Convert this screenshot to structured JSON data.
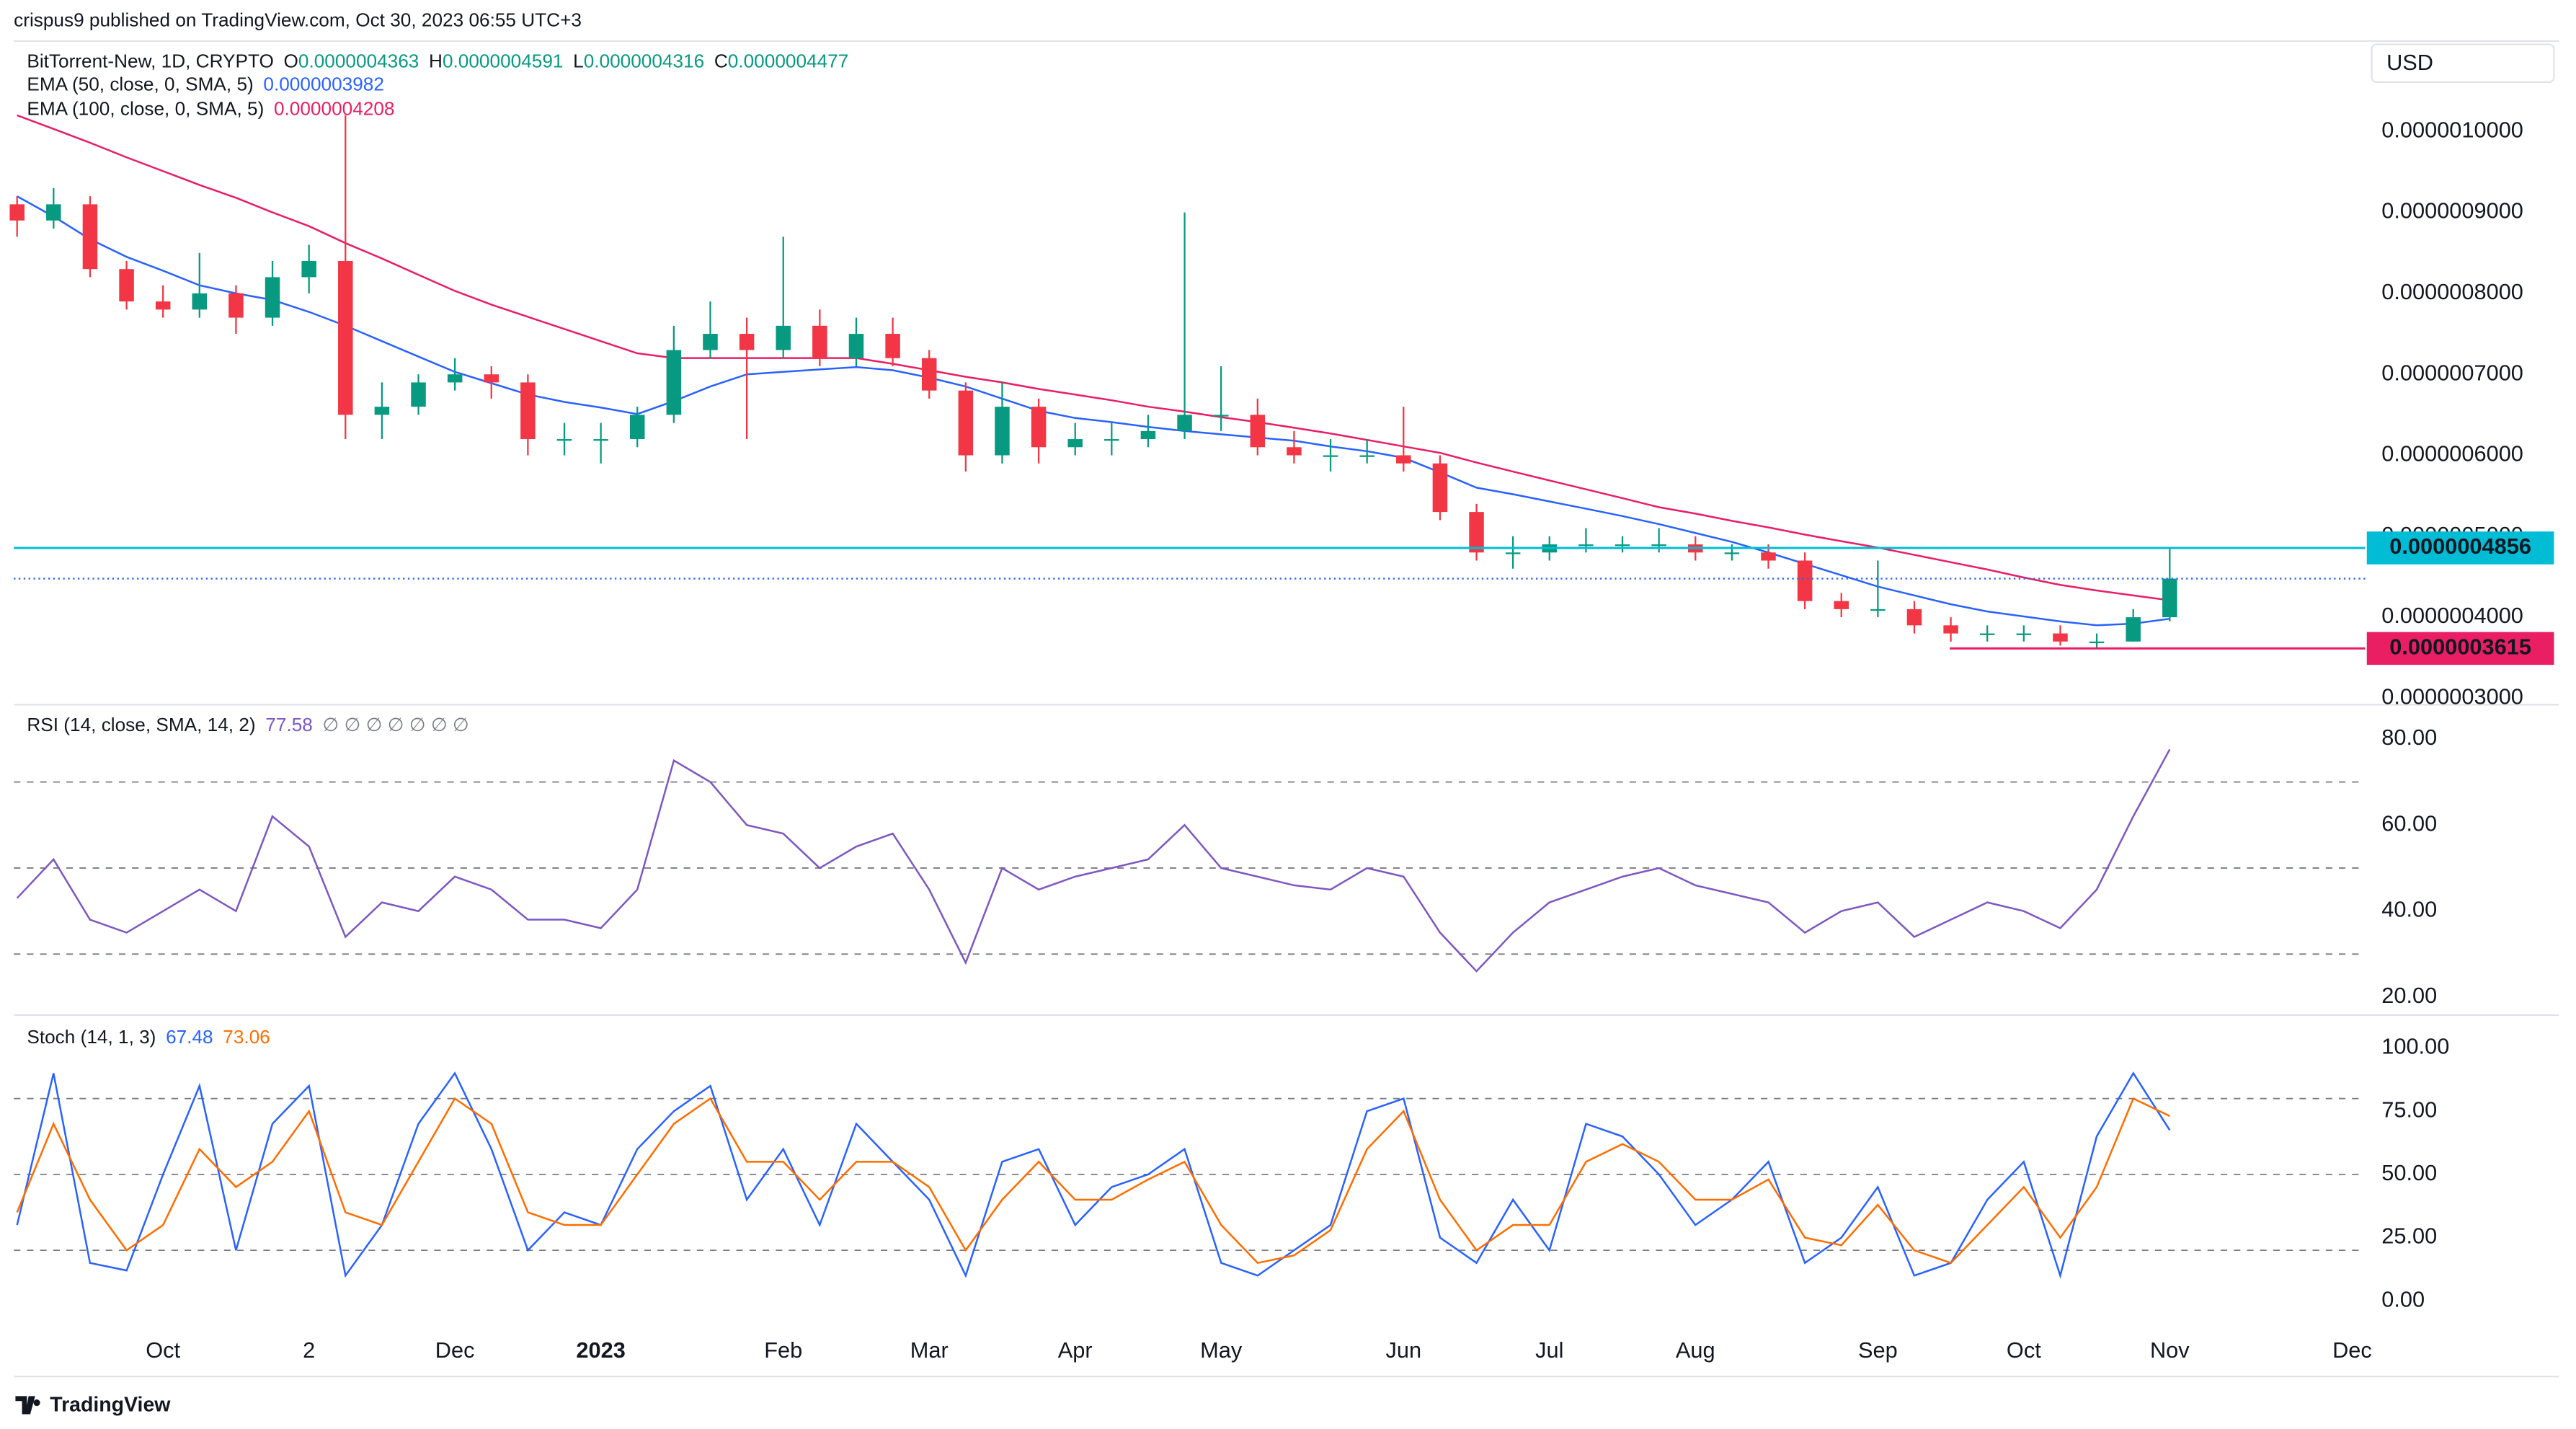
{
  "header": {
    "publisher": "crispus9 published on TradingView.com, Oct 30, 2023 06:55 UTC+3",
    "currency": "USD",
    "brand": "TradingView"
  },
  "chart_data": [
    {
      "type": "candlestick",
      "title": "BitTorrent-New, 1D, CRYPTO",
      "ohlc_labels": [
        {
          "label": "O",
          "value": "0.0000004363"
        },
        {
          "label": "H",
          "value": "0.0000004591"
        },
        {
          "label": "L",
          "value": "0.0000004316"
        },
        {
          "label": "C",
          "value": "0.0000004477"
        }
      ],
      "categories": [
        null,
        null,
        null,
        null,
        "Oct",
        null,
        null,
        null,
        "2",
        null,
        null,
        null,
        "Dec",
        null,
        null,
        null,
        "2023",
        null,
        null,
        null,
        null,
        "Feb",
        null,
        null,
        null,
        "Mar",
        null,
        null,
        null,
        "Apr",
        null,
        null,
        null,
        "May",
        null,
        null,
        null,
        null,
        "Jun",
        null,
        null,
        null,
        "Jul",
        null,
        null,
        null,
        "Aug",
        null,
        null,
        null,
        null,
        "Sep",
        null,
        null,
        null,
        "Oct",
        null,
        null,
        null,
        "Nov",
        null,
        null,
        null,
        null,
        "Dec"
      ],
      "open": [
        9.1e-07,
        8.9e-07,
        9.1e-07,
        8.3e-07,
        7.9e-07,
        7.8e-07,
        8e-07,
        7.7e-07,
        8.2e-07,
        8.4e-07,
        6.5e-07,
        6.6e-07,
        6.9e-07,
        7e-07,
        6.9e-07,
        6.2e-07,
        6.2e-07,
        6.2e-07,
        6.5e-07,
        7.3e-07,
        7.5e-07,
        7.3e-07,
        7.6e-07,
        7.2e-07,
        7.5e-07,
        7.2e-07,
        6.8e-07,
        6e-07,
        6.6e-07,
        6.1e-07,
        6.2e-07,
        6.2e-07,
        6.3e-07,
        6.5e-07,
        6.5e-07,
        6.1e-07,
        6e-07,
        6e-07,
        6e-07,
        5.9e-07,
        5.3e-07,
        4.8e-07,
        4.8e-07,
        4.9e-07,
        4.9e-07,
        4.9e-07,
        4.9e-07,
        4.8e-07,
        4.8e-07,
        4.7e-07,
        4.2e-07,
        4.1e-07,
        4.1e-07,
        3.9e-07,
        3.8e-07,
        3.8e-07,
        3.8e-07,
        3.7e-07,
        3.7e-07,
        4e-07,
        null,
        null,
        null,
        null,
        null
      ],
      "high": [
        9.2e-07,
        9.3e-07,
        9.2e-07,
        8.4e-07,
        8.1e-07,
        8.5e-07,
        8.1e-07,
        8.4e-07,
        8.6e-07,
        1.02e-06,
        6.9e-07,
        7e-07,
        7.2e-07,
        7.1e-07,
        7e-07,
        6.4e-07,
        6.4e-07,
        6.6e-07,
        7.6e-07,
        7.9e-07,
        7.7e-07,
        8.7e-07,
        7.8e-07,
        7.7e-07,
        7.7e-07,
        7.3e-07,
        6.9e-07,
        6.9e-07,
        6.7e-07,
        6.4e-07,
        6.4e-07,
        6.5e-07,
        9e-07,
        7.1e-07,
        6.7e-07,
        6.3e-07,
        6.2e-07,
        6.2e-07,
        6.6e-07,
        6e-07,
        5.4e-07,
        5e-07,
        5e-07,
        5.1e-07,
        5e-07,
        5.1e-07,
        5e-07,
        4.9e-07,
        4.9e-07,
        4.8e-07,
        4.3e-07,
        4.7e-07,
        4.2e-07,
        4e-07,
        3.9e-07,
        3.9e-07,
        3.9e-07,
        3.8e-07,
        4.1e-07,
        4.856e-07,
        null,
        null,
        null,
        null,
        null
      ],
      "low": [
        8.7e-07,
        8.8e-07,
        8.2e-07,
        7.8e-07,
        7.7e-07,
        7.7e-07,
        7.5e-07,
        7.6e-07,
        8e-07,
        6.2e-07,
        6.2e-07,
        6.5e-07,
        6.8e-07,
        6.7e-07,
        6e-07,
        6e-07,
        5.9e-07,
        6.1e-07,
        6.4e-07,
        7.2e-07,
        6.2e-07,
        7.2e-07,
        7.1e-07,
        7.1e-07,
        7.1e-07,
        6.7e-07,
        5.8e-07,
        5.9e-07,
        5.9e-07,
        6e-07,
        6e-07,
        6.1e-07,
        6.2e-07,
        6.3e-07,
        6e-07,
        5.9e-07,
        5.8e-07,
        5.9e-07,
        5.8e-07,
        5.2e-07,
        4.7e-07,
        4.6e-07,
        4.7e-07,
        4.8e-07,
        4.8e-07,
        4.8e-07,
        4.7e-07,
        4.7e-07,
        4.6e-07,
        4.1e-07,
        4e-07,
        4e-07,
        3.8e-07,
        3.7e-07,
        3.7e-07,
        3.7e-07,
        3.65e-07,
        3.615e-07,
        3.7e-07,
        3.95e-07,
        null,
        null,
        null,
        null,
        null
      ],
      "close": [
        8.9e-07,
        9.1e-07,
        8.3e-07,
        7.9e-07,
        7.8e-07,
        8e-07,
        7.7e-07,
        8.2e-07,
        8.4e-07,
        6.5e-07,
        6.6e-07,
        6.9e-07,
        7e-07,
        6.9e-07,
        6.2e-07,
        6.2e-07,
        6.2e-07,
        6.5e-07,
        7.3e-07,
        7.5e-07,
        7.3e-07,
        7.6e-07,
        7.2e-07,
        7.5e-07,
        7.2e-07,
        6.8e-07,
        6e-07,
        6.6e-07,
        6.1e-07,
        6.2e-07,
        6.2e-07,
        6.3e-07,
        6.5e-07,
        6.5e-07,
        6.1e-07,
        6e-07,
        6e-07,
        6e-07,
        5.9e-07,
        5.3e-07,
        4.8e-07,
        4.8e-07,
        4.9e-07,
        4.9e-07,
        4.9e-07,
        4.9e-07,
        4.8e-07,
        4.8e-07,
        4.7e-07,
        4.2e-07,
        4.1e-07,
        4.1e-07,
        3.9e-07,
        3.8e-07,
        3.8e-07,
        3.8e-07,
        3.7e-07,
        3.7e-07,
        4e-07,
        4.477e-07,
        null,
        null,
        null,
        null,
        null
      ],
      "up_color": "#089981",
      "down_color": "#f23645",
      "series": [
        {
          "name": "EMA (50, close, 0, SMA, 5)",
          "last_label": "0.0000003982",
          "color": "#2962ff",
          "values": [
            9.2e-07,
            8.95e-07,
            8.67e-07,
            8.45e-07,
            8.28e-07,
            8.1e-07,
            8e-07,
            7.92e-07,
            7.77e-07,
            7.6e-07,
            7.41e-07,
            7.22e-07,
            7.03e-07,
            6.89e-07,
            6.75e-07,
            6.66e-07,
            6.59e-07,
            6.51e-07,
            6.67e-07,
            6.85e-07,
            7e-07,
            7.03e-07,
            7.06e-07,
            7.09e-07,
            7.05e-07,
            6.96e-07,
            6.85e-07,
            6.7e-07,
            6.55e-07,
            6.46e-07,
            6.41e-07,
            6.35e-07,
            6.3e-07,
            6.26e-07,
            6.22e-07,
            6.18e-07,
            6.11e-07,
            6.05e-07,
            5.97e-07,
            5.79e-07,
            5.6e-07,
            5.52e-07,
            5.43e-07,
            5.34e-07,
            5.25e-07,
            5.15e-07,
            5.04e-07,
            4.93e-07,
            4.8e-07,
            4.66e-07,
            4.52e-07,
            4.38e-07,
            4.27e-07,
            4.16e-07,
            4.07e-07,
            4.01e-07,
            3.95e-07,
            3.9e-07,
            3.92e-07,
            3.982e-07,
            null,
            null,
            null,
            null,
            null
          ]
        },
        {
          "name": "EMA (100, close, 0, SMA, 5)",
          "last_label": "0.0000004208",
          "color": "#e91e63",
          "values": [
            1.02e-06,
            1.003e-06,
            9.86e-07,
            9.68e-07,
            9.51e-07,
            9.34e-07,
            9.18e-07,
            9e-07,
            8.83e-07,
            8.62e-07,
            8.43e-07,
            8.23e-07,
            8.03e-07,
            7.86e-07,
            7.71e-07,
            7.56e-07,
            7.41e-07,
            7.26e-07,
            7.2e-07,
            7.2e-07,
            7.2e-07,
            7.2e-07,
            7.2e-07,
            7.2e-07,
            7.13e-07,
            7.05e-07,
            6.97e-07,
            6.9e-07,
            6.82e-07,
            6.75e-07,
            6.68e-07,
            6.6e-07,
            6.54e-07,
            6.47e-07,
            6.41e-07,
            6.34e-07,
            6.27e-07,
            6.19e-07,
            6.11e-07,
            6.03e-07,
            5.91e-07,
            5.8e-07,
            5.69e-07,
            5.58e-07,
            5.47e-07,
            5.36e-07,
            5.28e-07,
            5.19e-07,
            5.11e-07,
            5.02e-07,
            4.94e-07,
            4.86e-07,
            4.77e-07,
            4.68e-07,
            4.59e-07,
            4.49e-07,
            4.4e-07,
            4.33e-07,
            4.27e-07,
            4.208e-07,
            null,
            null,
            null,
            null,
            null
          ]
        }
      ],
      "ylim": [
        2.941e-07,
        1.1116e-06
      ],
      "yticks": [
        {
          "value": 1e-06,
          "label": "0.0000010000"
        },
        {
          "value": 9e-07,
          "label": "0.0000009000"
        },
        {
          "value": 8e-07,
          "label": "0.0000008000"
        },
        {
          "value": 7e-07,
          "label": "0.0000007000"
        },
        {
          "value": 6e-07,
          "label": "0.0000006000"
        },
        {
          "value": 5e-07,
          "label": "0.0000005000"
        },
        {
          "value": 4e-07,
          "label": "0.0000004000"
        },
        {
          "value": 3e-07,
          "label": "0.0000003000"
        }
      ],
      "hlines": [
        {
          "value": 4.856e-07,
          "label": "0.0000004856",
          "color": "#00bcd4"
        },
        {
          "value": 3.615e-07,
          "label": "0.0000003615",
          "color": "#e91e63"
        }
      ],
      "grid": false
    },
    {
      "type": "line",
      "title": "RSI (14, close, SMA, 14, 2)",
      "flags": "∅ ∅ ∅ ∅ ∅ ∅ ∅",
      "series": [
        {
          "color": "#7e57c2",
          "values": [
            43,
            52,
            38,
            35,
            40,
            45,
            40,
            62,
            55,
            34,
            42,
            40,
            48,
            45,
            38,
            38,
            36,
            45,
            75,
            70,
            60,
            58,
            50,
            55,
            58,
            45,
            28,
            50,
            45,
            48,
            50,
            52,
            60,
            50,
            48,
            46,
            45,
            50,
            48,
            35,
            26,
            35,
            42,
            45,
            48,
            50,
            46,
            44,
            42,
            35,
            40,
            42,
            34,
            38,
            42,
            40,
            36,
            45,
            62,
            77.58
          ]
        }
      ],
      "ylim": [
        16.2,
        87.6
      ],
      "yticks": [
        {
          "value": 80,
          "label": "80.00"
        },
        {
          "value": 60,
          "label": "60.00"
        },
        {
          "value": 40,
          "label": "40.00"
        },
        {
          "value": 20,
          "label": "20.00"
        }
      ],
      "bands": [
        70,
        50,
        30
      ]
    },
    {
      "type": "line",
      "title": "Stoch (14, 1, 3)",
      "series": [
        {
          "color": "#2962ff",
          "values": [
            30,
            90,
            15,
            12,
            50,
            85,
            20,
            70,
            85,
            10,
            30,
            70,
            90,
            60,
            20,
            35,
            30,
            60,
            75,
            85,
            40,
            60,
            30,
            70,
            55,
            40,
            10,
            55,
            60,
            30,
            45,
            50,
            60,
            15,
            10,
            20,
            30,
            75,
            80,
            25,
            15,
            40,
            20,
            70,
            65,
            50,
            30,
            40,
            55,
            15,
            25,
            45,
            10,
            15,
            40,
            55,
            10,
            65,
            90,
            67.48
          ]
        },
        {
          "color": "#ff6d00",
          "values": [
            35,
            70,
            40,
            20,
            30,
            60,
            45,
            55,
            75,
            35,
            30,
            55,
            80,
            70,
            35,
            30,
            30,
            50,
            70,
            80,
            55,
            55,
            40,
            55,
            55,
            45,
            20,
            40,
            55,
            40,
            40,
            48,
            55,
            30,
            15,
            18,
            28,
            60,
            75,
            40,
            20,
            30,
            30,
            55,
            62,
            55,
            40,
            40,
            48,
            25,
            22,
            38,
            20,
            15,
            30,
            45,
            25,
            45,
            80,
            73.06
          ]
        }
      ],
      "ylim": [
        -13,
        111.7
      ],
      "yticks": [
        {
          "value": 100,
          "label": "100.00"
        },
        {
          "value": 75,
          "label": "75.00"
        },
        {
          "value": 50,
          "label": "50.00"
        },
        {
          "value": 25,
          "label": "25.00"
        },
        {
          "value": 0,
          "label": "0.00"
        }
      ],
      "bands": [
        80,
        50,
        20
      ]
    }
  ]
}
